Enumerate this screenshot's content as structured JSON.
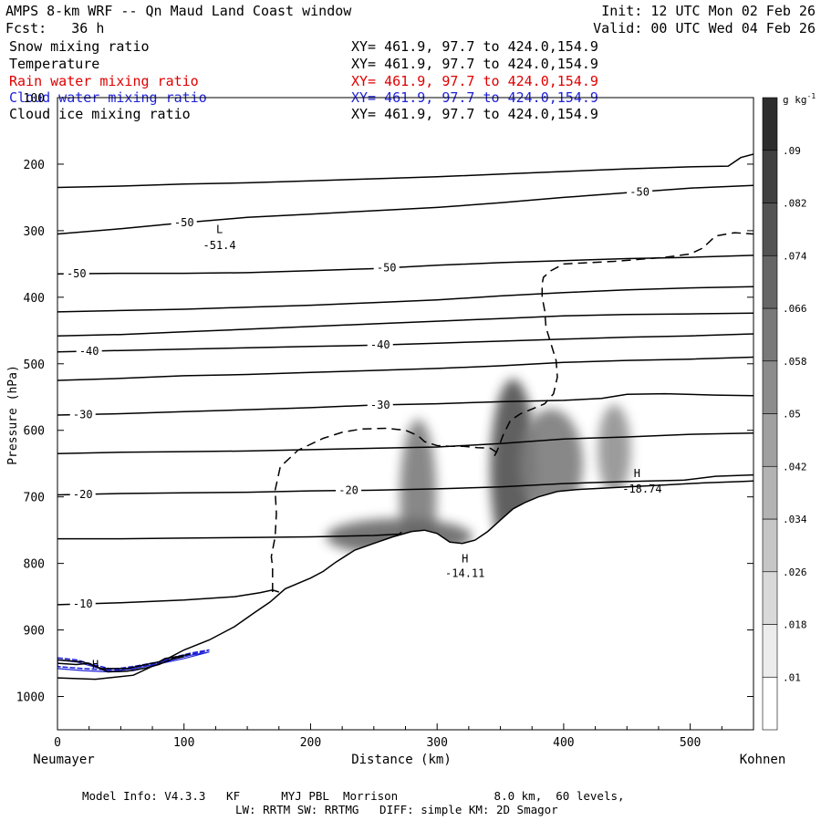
{
  "header": {
    "title": "AMPS 8-km WRF -- Qn Maud Land Coast window",
    "init": "Init: 12 UTC Mon 02 Feb 26",
    "forecast": "Fcst:   36 h",
    "valid": "Valid: 00 UTC Wed 04 Feb 26"
  },
  "legend": [
    {
      "name": "Snow mixing ratio",
      "xy": "XY= 461.9, 97.7 to 424.0,154.9",
      "color": "#000000"
    },
    {
      "name": "Temperature",
      "xy": "XY= 461.9, 97.7 to 424.0,154.9",
      "color": "#000000"
    },
    {
      "name": "Rain water mixing ratio",
      "xy": "XY= 461.9, 97.7 to 424.0,154.9",
      "color": "#e00000"
    },
    {
      "name": "Cloud water mixing ratio",
      "xy": "XY= 461.9, 97.7 to 424.0,154.9",
      "color": "#1f22d8"
    },
    {
      "name": "Cloud ice mixing ratio",
      "xy": "XY= 461.9, 97.7 to 424.0,154.9",
      "color": "#000000"
    }
  ],
  "chart_data": {
    "type": "contour-cross-section",
    "ylabel": "Pressure (hPa)",
    "xlabel": "Distance (km)",
    "x_start_label": "Neumayer",
    "x_end_label": "Kohnen",
    "xlim": [
      0,
      550
    ],
    "ylim": [
      1050,
      100
    ],
    "x_ticks": [
      0,
      100,
      200,
      300,
      400,
      500
    ],
    "y_ticks": [
      100,
      200,
      300,
      400,
      500,
      600,
      700,
      800,
      900,
      1000
    ],
    "colorbar": {
      "unit": "g kg-1",
      "labels": [
        ".01",
        ".018",
        ".026",
        ".034",
        ".042",
        ".05",
        ".058",
        ".066",
        ".074",
        ".082",
        ".09"
      ]
    },
    "terrain": [
      [
        0,
        972
      ],
      [
        30,
        974
      ],
      [
        60,
        968
      ],
      [
        80,
        950
      ],
      [
        100,
        930
      ],
      [
        120,
        915
      ],
      [
        140,
        895
      ],
      [
        155,
        875
      ],
      [
        168,
        858
      ],
      [
        180,
        838
      ],
      [
        200,
        822
      ],
      [
        210,
        812
      ],
      [
        220,
        798
      ],
      [
        235,
        780
      ],
      [
        250,
        770
      ],
      [
        265,
        760
      ],
      [
        280,
        752
      ],
      [
        290,
        750
      ],
      [
        300,
        755
      ],
      [
        310,
        768
      ],
      [
        320,
        770
      ],
      [
        330,
        765
      ],
      [
        340,
        752
      ],
      [
        350,
        735
      ],
      [
        360,
        718
      ],
      [
        370,
        708
      ],
      [
        380,
        700
      ],
      [
        395,
        692
      ],
      [
        410,
        689
      ],
      [
        430,
        687
      ],
      [
        450,
        685
      ],
      [
        480,
        682
      ],
      [
        510,
        679
      ],
      [
        540,
        677
      ],
      [
        550,
        676
      ]
    ],
    "temperature_contours": [
      {
        "label": "-50",
        "points": [
          [
            0,
            235
          ],
          [
            50,
            233
          ],
          [
            100,
            230
          ],
          [
            150,
            228
          ],
          [
            200,
            225
          ],
          [
            250,
            222
          ],
          [
            300,
            219
          ],
          [
            350,
            215
          ],
          [
            400,
            211
          ],
          [
            450,
            207
          ],
          [
            500,
            204
          ],
          [
            530,
            203
          ],
          [
            540,
            190
          ],
          [
            550,
            185
          ]
        ]
      },
      {
        "label": "-50",
        "points": [
          [
            0,
            305
          ],
          [
            50,
            297
          ],
          [
            100,
            288
          ],
          [
            150,
            280
          ],
          [
            200,
            275
          ],
          [
            250,
            270
          ],
          [
            300,
            265
          ],
          [
            350,
            258
          ],
          [
            400,
            250
          ],
          [
            450,
            243
          ],
          [
            500,
            236
          ],
          [
            550,
            232
          ]
        ]
      },
      {
        "label": "-50",
        "points": [
          [
            0,
            365
          ],
          [
            50,
            364
          ],
          [
            100,
            364
          ],
          [
            150,
            363
          ],
          [
            200,
            360
          ],
          [
            250,
            357
          ],
          [
            300,
            352
          ],
          [
            350,
            348
          ],
          [
            400,
            345
          ],
          [
            450,
            342
          ],
          [
            500,
            340
          ],
          [
            550,
            337
          ]
        ]
      },
      {
        "label": "",
        "points": [
          [
            0,
            422
          ],
          [
            50,
            420
          ],
          [
            100,
            418
          ],
          [
            150,
            415
          ],
          [
            200,
            412
          ],
          [
            250,
            408
          ],
          [
            300,
            404
          ],
          [
            350,
            398
          ],
          [
            400,
            393
          ],
          [
            450,
            389
          ],
          [
            500,
            386
          ],
          [
            550,
            384
          ]
        ]
      },
      {
        "label": "",
        "points": [
          [
            0,
            458
          ],
          [
            50,
            456
          ],
          [
            100,
            452
          ],
          [
            150,
            448
          ],
          [
            200,
            444
          ],
          [
            250,
            440
          ],
          [
            300,
            436
          ],
          [
            350,
            432
          ],
          [
            400,
            428
          ],
          [
            450,
            426
          ],
          [
            500,
            425
          ],
          [
            550,
            424
          ]
        ]
      },
      {
        "label": "-40",
        "points": [
          [
            0,
            482
          ],
          [
            50,
            480
          ],
          [
            100,
            478
          ],
          [
            150,
            476
          ],
          [
            200,
            474
          ],
          [
            250,
            472
          ],
          [
            300,
            469
          ],
          [
            350,
            466
          ],
          [
            400,
            463
          ],
          [
            450,
            460
          ],
          [
            500,
            458
          ],
          [
            550,
            455
          ]
        ]
      },
      {
        "label": "",
        "points": [
          [
            0,
            525
          ],
          [
            50,
            522
          ],
          [
            100,
            518
          ],
          [
            150,
            516
          ],
          [
            200,
            513
          ],
          [
            250,
            510
          ],
          [
            300,
            507
          ],
          [
            350,
            503
          ],
          [
            400,
            498
          ],
          [
            450,
            495
          ],
          [
            500,
            493
          ],
          [
            550,
            490
          ]
        ]
      },
      {
        "label": "-30",
        "points": [
          [
            0,
            577
          ],
          [
            50,
            575
          ],
          [
            100,
            572
          ],
          [
            150,
            569
          ],
          [
            200,
            566
          ],
          [
            250,
            562
          ],
          [
            300,
            560
          ],
          [
            350,
            557
          ],
          [
            400,
            555
          ],
          [
            430,
            552
          ],
          [
            450,
            546
          ],
          [
            480,
            545
          ],
          [
            520,
            547
          ],
          [
            550,
            548
          ]
        ]
      },
      {
        "label": "",
        "points": [
          [
            0,
            635
          ],
          [
            50,
            633
          ],
          [
            100,
            632
          ],
          [
            150,
            631
          ],
          [
            200,
            629
          ],
          [
            250,
            627
          ],
          [
            300,
            625
          ],
          [
            350,
            620
          ],
          [
            400,
            613
          ],
          [
            450,
            610
          ],
          [
            500,
            606
          ],
          [
            550,
            604
          ]
        ]
      },
      {
        "label": "-20",
        "points": [
          [
            0,
            697
          ],
          [
            50,
            695
          ],
          [
            100,
            694
          ],
          [
            150,
            693
          ],
          [
            200,
            691
          ],
          [
            250,
            690
          ],
          [
            300,
            688
          ],
          [
            350,
            685
          ],
          [
            400,
            680
          ],
          [
            450,
            677
          ],
          [
            495,
            675
          ]
        ]
      },
      {
        "label": "",
        "points": [
          [
            495,
            675
          ],
          [
            520,
            669
          ],
          [
            550,
            667
          ]
        ]
      },
      {
        "label": "",
        "points": [
          [
            0,
            763
          ],
          [
            50,
            763
          ],
          [
            100,
            762
          ],
          [
            150,
            761
          ],
          [
            200,
            760
          ],
          [
            250,
            758
          ],
          [
            270,
            756
          ],
          [
            272,
            753
          ]
        ]
      },
      {
        "label": "-10",
        "points": [
          [
            0,
            862
          ],
          [
            50,
            859
          ],
          [
            100,
            855
          ],
          [
            140,
            850
          ],
          [
            160,
            844
          ],
          [
            170,
            840
          ],
          [
            175,
            843
          ]
        ]
      },
      {
        "label": "",
        "points": [
          [
            0,
            950
          ],
          [
            15,
            952
          ],
          [
            25,
            950
          ],
          [
            30,
            955
          ],
          [
            40,
            963
          ],
          [
            55,
            962
          ],
          [
            70,
            957
          ],
          [
            80,
            952
          ],
          [
            90,
            944
          ],
          [
            100,
            940
          ]
        ]
      },
      {
        "label": "",
        "points": [
          [
            0,
            945
          ],
          [
            20,
            948
          ],
          [
            35,
            958
          ],
          [
            55,
            958
          ],
          [
            70,
            952
          ],
          [
            80,
            948
          ],
          [
            85,
            943
          ],
          [
            95,
            940
          ],
          [
            105,
            936
          ]
        ]
      }
    ],
    "ice_contour_dashed": [
      [
        170,
        843
      ],
      [
        170,
        805
      ],
      [
        169,
        790
      ],
      [
        172,
        760
      ],
      [
        173,
        725
      ],
      [
        172,
        690
      ],
      [
        176,
        655
      ],
      [
        190,
        630
      ],
      [
        210,
        612
      ],
      [
        225,
        603
      ],
      [
        240,
        598
      ],
      [
        260,
        597
      ],
      [
        275,
        600
      ],
      [
        285,
        608
      ],
      [
        290,
        617
      ],
      [
        300,
        623
      ],
      [
        310,
        624
      ],
      [
        320,
        624
      ],
      [
        332,
        626
      ],
      [
        342,
        627
      ],
      [
        347,
        633
      ],
      [
        345,
        640
      ],
      [
        348,
        628
      ],
      [
        352,
        608
      ],
      [
        358,
        585
      ],
      [
        366,
        575
      ],
      [
        375,
        568
      ],
      [
        385,
        560
      ],
      [
        392,
        545
      ],
      [
        395,
        520
      ],
      [
        394,
        495
      ],
      [
        390,
        470
      ],
      [
        386,
        445
      ],
      [
        385,
        420
      ],
      [
        383,
        400
      ],
      [
        383,
        380
      ],
      [
        384,
        370
      ],
      [
        390,
        360
      ],
      [
        400,
        350
      ],
      [
        420,
        348
      ],
      [
        440,
        346
      ],
      [
        460,
        343
      ],
      [
        480,
        340
      ],
      [
        500,
        335
      ],
      [
        510,
        326
      ],
      [
        520,
        308
      ],
      [
        535,
        303
      ],
      [
        550,
        305
      ]
    ],
    "snow_blobs": [
      {
        "x": 285,
        "p": 700,
        "rx": 20,
        "ry": 85,
        "peak": 0.05
      },
      {
        "x": 270,
        "p": 760,
        "rx": 80,
        "ry": 20,
        "peak": 0.06
      },
      {
        "x": 360,
        "p": 660,
        "rx": 25,
        "ry": 100,
        "peak": 0.07
      },
      {
        "x": 390,
        "p": 650,
        "rx": 35,
        "ry": 60,
        "peak": 0.05
      },
      {
        "x": 440,
        "p": 630,
        "rx": 18,
        "ry": 50,
        "peak": 0.04
      }
    ],
    "cloud_water_region": [
      [
        0,
        942
      ],
      [
        15,
        945
      ],
      [
        30,
        953
      ],
      [
        45,
        960
      ],
      [
        60,
        958
      ],
      [
        75,
        952
      ],
      [
        90,
        942
      ],
      [
        105,
        935
      ],
      [
        120,
        930
      ],
      [
        100,
        940
      ],
      [
        80,
        948
      ],
      [
        60,
        955
      ],
      [
        40,
        960
      ],
      [
        20,
        958
      ],
      [
        0,
        955
      ]
    ],
    "annotations": [
      {
        "text": "L",
        "x": 128,
        "p": 298
      },
      {
        "text": "-51.4",
        "x": 128,
        "p": 322
      },
      {
        "text": "H",
        "x": 30,
        "p": 952
      },
      {
        "text": "H",
        "x": 322,
        "p": 793
      },
      {
        "text": "-14.11",
        "x": 322,
        "p": 815
      },
      {
        "text": "H",
        "x": 458,
        "p": 665
      },
      {
        "text": "-18.74",
        "x": 462,
        "p": 688
      }
    ]
  },
  "footer": {
    "model_info": "Model Info: V4.3.3   KF      MYJ PBL  Morrison              8.0 km,  60 levels,",
    "model_info2": "LW: RRTM SW: RRTMG   DIFF: simple KM: 2D Smagor"
  }
}
